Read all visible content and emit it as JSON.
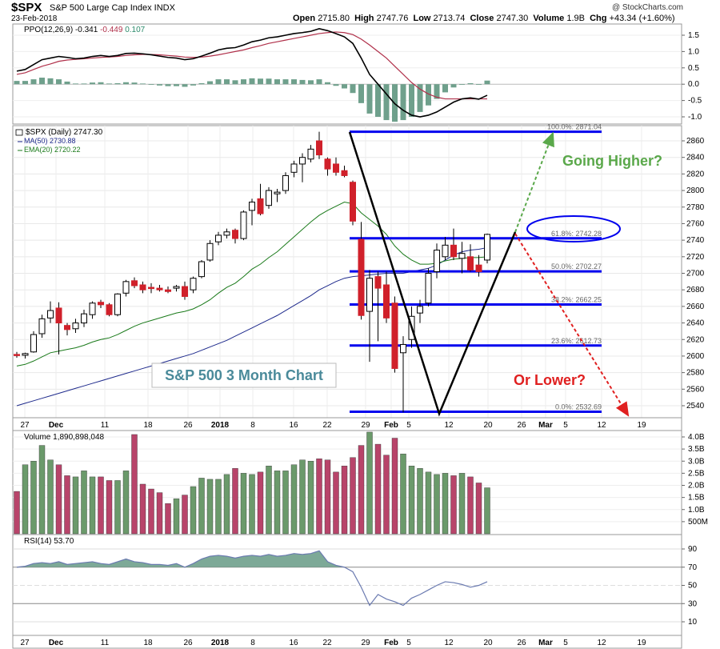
{
  "header": {
    "symbol": "$SPX",
    "name": "S&P 500 Large Cap Index INDX",
    "date": "23-Feb-2018",
    "credit": "@ StockCharts.com",
    "quote": [
      {
        "label": "Open",
        "value": "2715.80"
      },
      {
        "label": "High",
        "value": "2747.76"
      },
      {
        "label": "Low",
        "value": "2713.74"
      },
      {
        "label": "Close",
        "value": "2747.30"
      },
      {
        "label": "Volume",
        "value": "1.9B"
      },
      {
        "label": "Chg",
        "value": "+43.34 (+1.60%)"
      }
    ]
  },
  "colors": {
    "up": "#ffffff",
    "down": "#d0202a",
    "ma50": "#1e2a8c",
    "ema20": "#1a7a1a",
    "fib": "#0000ee",
    "ppo": "#000000",
    "signal": "#b0304a",
    "hist": "#6fa08c",
    "vol_up": "#6b9a6b",
    "vol_down": "#b8446a",
    "rsi": "#6a7ab0",
    "green_arrow": "#5aa84a",
    "red_arrow": "#e02020"
  },
  "ppo_panel": {
    "label_prefix": "PPO(12,26,9)",
    "v1": "-0.341",
    "v2": "-0.449",
    "v3": "0.107",
    "ticks": [
      "1.5",
      "1.0",
      "0.5",
      "0.0",
      "-0.5",
      "-1.0"
    ]
  },
  "price_panel": {
    "legend_spx": "$SPX (Daily) 2747.30",
    "legend_ma": "MA(50) 2730.88",
    "legend_ema": "EMA(20) 2720.22",
    "yticks": [
      "2860",
      "2840",
      "2820",
      "2800",
      "2780",
      "2760",
      "2740",
      "2720",
      "2700",
      "2680",
      "2660",
      "2640",
      "2620",
      "2600",
      "2580",
      "2560",
      "2540"
    ],
    "title_box": "S&P 500 3 Month Chart",
    "going_higher": "Going Higher?",
    "or_lower": "Or Lower?",
    "fib_labels": [
      {
        "text": "100.0%: 2871.04",
        "price": 2871.04
      },
      {
        "text": "61.8%: 2742.28",
        "price": 2742.28
      },
      {
        "text": "50.0%: 2702.27",
        "price": 2702.27
      },
      {
        "text": "38.2%: 2662.25",
        "price": 2662.25
      },
      {
        "text": "23.6%: 2612.73",
        "price": 2612.73
      },
      {
        "text": "0.0%: 2532.69",
        "price": 2532.69
      }
    ]
  },
  "x_axis": [
    "27",
    "Dec",
    "11",
    "18",
    "26",
    "2018",
    "8",
    "16",
    "22",
    "29",
    "Feb",
    "5",
    "12",
    "20",
    "26",
    "Mar",
    "5",
    "12",
    "19"
  ],
  "volume_panel": {
    "label": "Volume 1,890,898,048",
    "ticks": [
      "4.0B",
      "3.5B",
      "3.0B",
      "2.5B",
      "2.0B",
      "1.5B",
      "1.0B",
      "500M"
    ]
  },
  "rsi_panel": {
    "label": "RSI(14) 53.70",
    "ticks": [
      "90",
      "70",
      "50",
      "30",
      "10"
    ]
  },
  "chart_data": {
    "type": "candlestick",
    "y_range": [
      2530,
      2875
    ],
    "candles": [
      [
        2602,
        2605,
        2598,
        2601
      ],
      [
        2601,
        2604,
        2597,
        2603
      ],
      [
        2605,
        2630,
        2604,
        2626
      ],
      [
        2627,
        2650,
        2622,
        2645
      ],
      [
        2646,
        2666,
        2640,
        2655
      ],
      [
        2658,
        2665,
        2602,
        2640
      ],
      [
        2637,
        2640,
        2625,
        2632
      ],
      [
        2633,
        2645,
        2628,
        2640
      ],
      [
        2640,
        2656,
        2635,
        2651
      ],
      [
        2650,
        2666,
        2645,
        2664
      ],
      [
        2665,
        2668,
        2658,
        2662
      ],
      [
        2662,
        2664,
        2648,
        2650
      ],
      [
        2650,
        2676,
        2648,
        2675
      ],
      [
        2676,
        2692,
        2672,
        2690
      ],
      [
        2691,
        2695,
        2682,
        2685
      ],
      [
        2686,
        2690,
        2676,
        2680
      ],
      [
        2683,
        2688,
        2676,
        2682
      ],
      [
        2682,
        2686,
        2678,
        2680
      ],
      [
        2680,
        2684,
        2676,
        2678
      ],
      [
        2682,
        2686,
        2678,
        2684
      ],
      [
        2684,
        2690,
        2668,
        2672
      ],
      [
        2680,
        2696,
        2676,
        2694
      ],
      [
        2696,
        2716,
        2694,
        2714
      ],
      [
        2716,
        2740,
        2714,
        2736
      ],
      [
        2738,
        2750,
        2734,
        2746
      ],
      [
        2746,
        2754,
        2742,
        2750
      ],
      [
        2752,
        2754,
        2736,
        2742
      ],
      [
        2742,
        2776,
        2740,
        2774
      ],
      [
        2776,
        2790,
        2758,
        2786
      ],
      [
        2790,
        2808,
        2770,
        2772
      ],
      [
        2782,
        2804,
        2778,
        2800
      ],
      [
        2796,
        2802,
        2786,
        2798
      ],
      [
        2800,
        2822,
        2796,
        2818
      ],
      [
        2822,
        2836,
        2816,
        2832
      ],
      [
        2832,
        2845,
        2810,
        2840
      ],
      [
        2838,
        2855,
        2834,
        2850
      ],
      [
        2860,
        2871,
        2838,
        2843
      ],
      [
        2838,
        2840,
        2818,
        2826
      ],
      [
        2832,
        2840,
        2818,
        2822
      ],
      [
        2824,
        2830,
        2816,
        2818
      ],
      [
        2810,
        2812,
        2758,
        2763
      ],
      [
        2741,
        2762,
        2644,
        2649
      ],
      [
        2654,
        2704,
        2593,
        2694
      ],
      [
        2696,
        2702,
        2618,
        2682
      ],
      [
        2686,
        2702,
        2640,
        2646
      ],
      [
        2664,
        2672,
        2580,
        2585
      ],
      [
        2604,
        2624,
        2532,
        2614
      ],
      [
        2620,
        2660,
        2610,
        2648
      ],
      [
        2652,
        2668,
        2640,
        2660
      ],
      [
        2664,
        2706,
        2660,
        2700
      ],
      [
        2702,
        2736,
        2694,
        2728
      ],
      [
        2720,
        2744,
        2716,
        2734
      ],
      [
        2734,
        2754,
        2716,
        2720
      ],
      [
        2718,
        2738,
        2700,
        2724
      ],
      [
        2720,
        2735,
        2702,
        2704
      ],
      [
        2710,
        2722,
        2696,
        2702
      ],
      [
        2716,
        2748,
        2712,
        2747
      ]
    ],
    "volume_billions": [
      1.75,
      2.85,
      3.0,
      3.65,
      3.05,
      2.85,
      2.4,
      2.35,
      2.6,
      2.35,
      2.35,
      2.2,
      2.2,
      2.6,
      4.1,
      2.05,
      1.85,
      1.7,
      1.25,
      1.45,
      1.6,
      1.95,
      2.3,
      2.25,
      2.25,
      2.45,
      2.7,
      2.5,
      2.45,
      2.55,
      2.8,
      2.6,
      2.6,
      2.85,
      3.05,
      3.0,
      3.1,
      3.05,
      2.55,
      2.8,
      3.15,
      3.65,
      4.2,
      3.7,
      3.25,
      3.95,
      3.3,
      2.8,
      2.7,
      2.55,
      2.45,
      2.5,
      2.4,
      2.5,
      2.35,
      2.1,
      1.9
    ],
    "rsi": [
      70,
      71,
      74,
      75,
      74,
      76,
      73,
      74,
      75,
      76,
      74,
      73,
      76,
      79,
      76,
      75,
      73,
      73,
      72,
      74,
      70,
      74,
      79,
      82,
      83,
      82,
      80,
      82,
      83,
      82,
      84,
      82,
      83,
      85,
      84,
      85,
      88,
      76,
      72,
      70,
      65,
      48,
      28,
      40,
      35,
      32,
      28,
      36,
      40,
      45,
      50,
      54,
      53,
      51,
      48,
      50,
      54
    ],
    "ma50": [
      2540,
      2543,
      2546,
      2549,
      2552,
      2555,
      2558,
      2561,
      2564,
      2567,
      2570,
      2573,
      2576,
      2579,
      2582,
      2585,
      2588,
      2591,
      2594,
      2597,
      2600,
      2603,
      2607,
      2611,
      2615,
      2619,
      2624,
      2629,
      2634,
      2639,
      2644,
      2649,
      2655,
      2661,
      2667,
      2673,
      2680,
      2685,
      2690,
      2694,
      2696,
      2697,
      2698,
      2699,
      2700,
      2700,
      2700,
      2702,
      2704,
      2706,
      2710,
      2716,
      2722,
      2726,
      2728,
      2729,
      2731
    ],
    "ema20": [
      2588,
      2590,
      2594,
      2599,
      2604,
      2606,
      2608,
      2610,
      2613,
      2617,
      2620,
      2622,
      2626,
      2631,
      2636,
      2640,
      2643,
      2646,
      2649,
      2652,
      2654,
      2657,
      2662,
      2668,
      2676,
      2683,
      2688,
      2696,
      2705,
      2711,
      2719,
      2726,
      2735,
      2744,
      2753,
      2762,
      2770,
      2776,
      2781,
      2786,
      2784,
      2773,
      2765,
      2757,
      2747,
      2733,
      2723,
      2716,
      2711,
      2711,
      2712,
      2715,
      2717,
      2718,
      2719,
      2719,
      2720
    ],
    "ppo": [
      0.4,
      0.45,
      0.6,
      0.75,
      0.8,
      0.85,
      0.82,
      0.78,
      0.8,
      0.85,
      0.88,
      0.85,
      0.88,
      0.94,
      0.95,
      0.93,
      0.9,
      0.86,
      0.82,
      0.8,
      0.75,
      0.78,
      0.86,
      0.95,
      1.05,
      1.1,
      1.12,
      1.2,
      1.3,
      1.35,
      1.42,
      1.45,
      1.5,
      1.55,
      1.58,
      1.62,
      1.7,
      1.64,
      1.55,
      1.45,
      1.25,
      0.8,
      0.3,
      0.0,
      -0.3,
      -0.6,
      -0.8,
      -0.95,
      -1.0,
      -0.95,
      -0.85,
      -0.7,
      -0.55,
      -0.45,
      -0.42,
      -0.46,
      -0.34
    ],
    "ppo_signal": [
      0.3,
      0.35,
      0.45,
      0.55,
      0.62,
      0.7,
      0.74,
      0.76,
      0.78,
      0.8,
      0.82,
      0.83,
      0.85,
      0.88,
      0.9,
      0.91,
      0.91,
      0.9,
      0.88,
      0.86,
      0.83,
      0.82,
      0.83,
      0.86,
      0.9,
      0.95,
      1.0,
      1.05,
      1.12,
      1.18,
      1.25,
      1.3,
      1.35,
      1.4,
      1.45,
      1.5,
      1.55,
      1.58,
      1.6,
      1.58,
      1.52,
      1.38,
      1.2,
      1.0,
      0.8,
      0.55,
      0.3,
      0.05,
      -0.15,
      -0.3,
      -0.4,
      -0.45,
      -0.45,
      -0.45,
      -0.45,
      -0.45,
      -0.45
    ]
  }
}
